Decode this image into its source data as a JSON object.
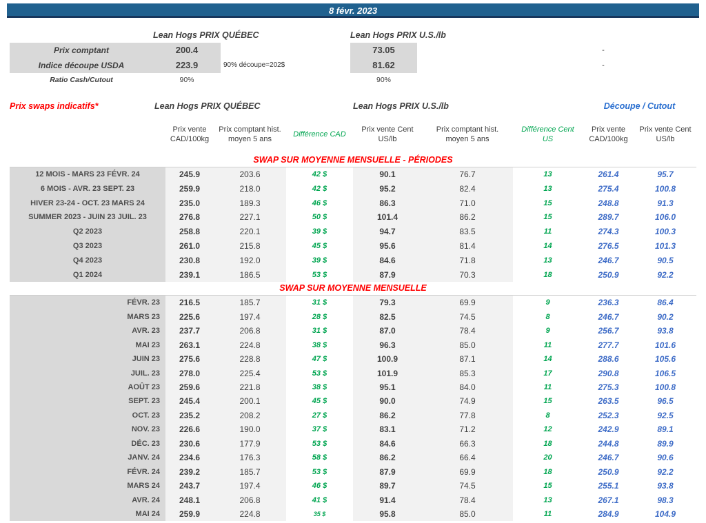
{
  "title_bar": {
    "date": "8 févr. 2023"
  },
  "colors": {
    "bar_blue": "#20618F",
    "bar_border": "#17375D",
    "red": "#FF0000",
    "green": "#00A550",
    "blue_values": "#3E6CC7",
    "blue_cutout": "#2A6FD0",
    "label_gray_bg": "#D9D9D9",
    "data_gray_bg": "#F2F2F2"
  },
  "summary": {
    "quebec_header": "Lean Hogs PRIX QUÉBEC",
    "us_header": "Lean Hogs PRIX U.S./lb",
    "rows": {
      "prix_comptant": {
        "label": "Prix comptant",
        "qc": "200.4",
        "note": "",
        "us": "73.05",
        "right": "-"
      },
      "indice_decoupe": {
        "label": "Indice découpe USDA",
        "qc": "223.9",
        "note": "90% découpe=202$",
        "us": "81.62",
        "right": "-"
      },
      "ratio": {
        "label": "Ratio Cash/Cutout",
        "qc": "90%",
        "note": "",
        "us": "90%",
        "right": ""
      }
    }
  },
  "swaps": {
    "title": "Prix swaps indicatifs*",
    "quebec_header": "Lean Hogs PRIX QUÉBEC",
    "us_header": "Lean Hogs PRIX U.S./lb",
    "cutout_header": "Découpe / Cutout",
    "col_headers": [
      "Prix vente CAD/100kg",
      "Prix comptant hist. moyen 5 ans",
      "Différence CAD",
      "Prix vente Cent US/lb",
      "Prix comptant hist. moyen 5 ans",
      "Différence Cent US",
      "Prix vente CAD/100kg",
      "Prix vente Cent US/lb"
    ],
    "sections": [
      {
        "header": "SWAP SUR MOYENNE MENSUELLE - PÉRIODES",
        "rows": [
          [
            "12 MOIS - MARS 23 FÉVR. 24",
            "245.9",
            "203.6",
            "42 $",
            "90.1",
            "76.7",
            "13",
            "261.4",
            "95.7"
          ],
          [
            "6 MOIS - AVR. 23 SEPT. 23",
            "259.9",
            "218.0",
            "42 $",
            "95.2",
            "82.4",
            "13",
            "275.4",
            "100.8"
          ],
          [
            "HIVER 23-24 -  OCT. 23 MARS 24",
            "235.0",
            "189.3",
            "46 $",
            "86.3",
            "71.0",
            "15",
            "248.8",
            "91.3"
          ],
          [
            "SUMMER 2023 - JUIN 23 JUIL. 23",
            "276.8",
            "227.1",
            "50 $",
            "101.4",
            "86.2",
            "15",
            "289.7",
            "106.0"
          ],
          [
            "Q2 2023",
            "258.8",
            "220.1",
            "39 $",
            "94.7",
            "83.5",
            "11",
            "274.3",
            "100.3"
          ],
          [
            "Q3 2023",
            "261.0",
            "215.8",
            "45 $",
            "95.6",
            "81.4",
            "14",
            "276.5",
            "101.3"
          ],
          [
            "Q4 2023",
            "230.8",
            "192.0",
            "39 $",
            "84.6",
            "71.8",
            "13",
            "246.7",
            "90.5"
          ],
          [
            "Q1 2024",
            "239.1",
            "186.5",
            "53 $",
            "87.9",
            "70.3",
            "18",
            "250.9",
            "92.2"
          ]
        ]
      },
      {
        "header": "SWAP SUR MOYENNE MENSUELLE",
        "rows": [
          [
            "FÉVR. 23",
            "216.5",
            "185.7",
            "31 $",
            "79.3",
            "69.9",
            "9",
            "236.3",
            "86.4"
          ],
          [
            "MARS 23",
            "225.6",
            "197.4",
            "28 $",
            "82.5",
            "74.5",
            "8",
            "246.7",
            "90.2"
          ],
          [
            "AVR. 23",
            "237.7",
            "206.8",
            "31 $",
            "87.0",
            "78.4",
            "9",
            "256.7",
            "93.8"
          ],
          [
            "MAI 23",
            "263.1",
            "224.8",
            "38 $",
            "96.3",
            "85.0",
            "11",
            "277.7",
            "101.6"
          ],
          [
            "JUIN 23",
            "275.6",
            "228.8",
            "47 $",
            "100.9",
            "87.1",
            "14",
            "288.6",
            "105.6"
          ],
          [
            "JUIL. 23",
            "278.0",
            "225.4",
            "53 $",
            "101.9",
            "85.3",
            "17",
            "290.8",
            "106.5"
          ],
          [
            "AOÛT 23",
            "259.6",
            "221.8",
            "38 $",
            "95.1",
            "84.0",
            "11",
            "275.3",
            "100.8"
          ],
          [
            "SEPT. 23",
            "245.4",
            "200.1",
            "45 $",
            "90.0",
            "74.9",
            "15",
            "263.5",
            "96.5"
          ],
          [
            "OCT. 23",
            "235.2",
            "208.2",
            "27 $",
            "86.2",
            "77.8",
            "8",
            "252.3",
            "92.5"
          ],
          [
            "NOV. 23",
            "226.6",
            "190.0",
            "37 $",
            "83.1",
            "71.2",
            "12",
            "242.9",
            "89.1"
          ],
          [
            "DÉC. 23",
            "230.6",
            "177.9",
            "53 $",
            "84.6",
            "66.3",
            "18",
            "244.8",
            "89.9"
          ],
          [
            "JANV. 24",
            "234.6",
            "176.3",
            "58 $",
            "86.2",
            "66.4",
            "20",
            "246.7",
            "90.6"
          ],
          [
            "FÉVR. 24",
            "239.2",
            "185.7",
            "53 $",
            "87.9",
            "69.9",
            "18",
            "250.9",
            "92.2"
          ],
          [
            "MARS 24",
            "243.7",
            "197.4",
            "46 $",
            "89.7",
            "74.5",
            "15",
            "255.1",
            "93.8"
          ],
          [
            "AVR. 24",
            "248.1",
            "206.8",
            "41 $",
            "91.4",
            "78.4",
            "13",
            "267.1",
            "98.3"
          ],
          [
            "MAI 24",
            "259.9",
            "224.8",
            "35 $",
            "95.8",
            "85.0",
            "11",
            "284.9",
            "104.9"
          ]
        ]
      }
    ]
  }
}
